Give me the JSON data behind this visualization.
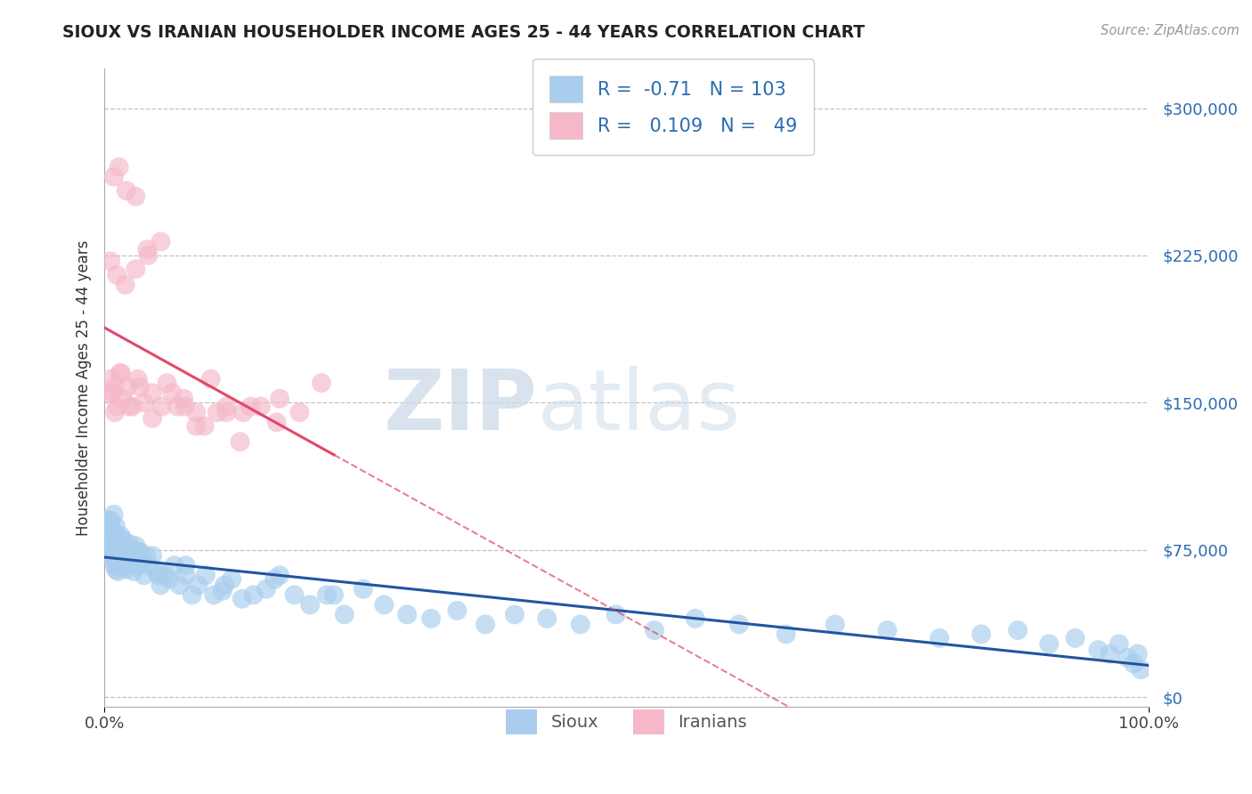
{
  "title": "SIOUX VS IRANIAN HOUSEHOLDER INCOME AGES 25 - 44 YEARS CORRELATION CHART",
  "source": "Source: ZipAtlas.com",
  "ylabel": "Householder Income Ages 25 - 44 years",
  "xlim": [
    0.0,
    1.0
  ],
  "ylim": [
    -5000,
    320000
  ],
  "yticks": [
    0,
    75000,
    150000,
    225000,
    300000
  ],
  "ytick_labels": [
    "$0",
    "$75,000",
    "$150,000",
    "$225,000",
    "$300,000"
  ],
  "xtick_labels": [
    "0.0%",
    "100.0%"
  ],
  "sioux_dot_color": "#A8CDED",
  "iranian_dot_color": "#F5B8C8",
  "sioux_line_color": "#2255A0",
  "iranian_line_color": "#E04868",
  "sioux_R": -0.71,
  "sioux_N": 103,
  "iranian_R": 0.109,
  "iranian_N": 49,
  "legend_label_sioux": "Sioux",
  "legend_label_iranian": "Iranians",
  "watermark_zip": "ZIP",
  "watermark_atlas": "atlas",
  "background_color": "#FFFFFF",
  "grid_color": "#BBBBBB",
  "title_color": "#222222",
  "source_color": "#999999",
  "axis_label_color": "#333333",
  "tick_value_color": "#2B6CB0",
  "bottom_legend_color": "#555555",
  "sioux_x": [
    0.002,
    0.003,
    0.004,
    0.005,
    0.006,
    0.006,
    0.007,
    0.007,
    0.008,
    0.008,
    0.009,
    0.009,
    0.01,
    0.01,
    0.011,
    0.011,
    0.012,
    0.012,
    0.013,
    0.013,
    0.014,
    0.015,
    0.015,
    0.016,
    0.016,
    0.017,
    0.018,
    0.019,
    0.02,
    0.021,
    0.022,
    0.023,
    0.024,
    0.025,
    0.027,
    0.028,
    0.03,
    0.032,
    0.034,
    0.036,
    0.038,
    0.04,
    0.043,
    0.046,
    0.05,
    0.054,
    0.058,
    0.062,
    0.067,
    0.072,
    0.078,
    0.084,
    0.09,
    0.097,
    0.105,
    0.113,
    0.122,
    0.132,
    0.143,
    0.155,
    0.168,
    0.182,
    0.197,
    0.213,
    0.23,
    0.248,
    0.268,
    0.29,
    0.313,
    0.338,
    0.365,
    0.393,
    0.424,
    0.456,
    0.49,
    0.527,
    0.566,
    0.608,
    0.653,
    0.7,
    0.75,
    0.8,
    0.84,
    0.875,
    0.905,
    0.93,
    0.952,
    0.963,
    0.972,
    0.98,
    0.986,
    0.99,
    0.993,
    0.004,
    0.008,
    0.013,
    0.021,
    0.033,
    0.052,
    0.078,
    0.115,
    0.163,
    0.22
  ],
  "sioux_y": [
    88000,
    82000,
    90000,
    80000,
    76000,
    90000,
    84000,
    72000,
    85000,
    70000,
    93000,
    75000,
    67000,
    79000,
    87000,
    65000,
    73000,
    82000,
    71000,
    76000,
    69000,
    74000,
    78000,
    82000,
    67000,
    72000,
    80000,
    70000,
    76000,
    65000,
    74000,
    67000,
    78000,
    72000,
    70000,
    64000,
    77000,
    67000,
    74000,
    70000,
    62000,
    72000,
    67000,
    72000,
    64000,
    57000,
    62000,
    60000,
    67000,
    57000,
    62000,
    52000,
    57000,
    62000,
    52000,
    54000,
    60000,
    50000,
    52000,
    55000,
    62000,
    52000,
    47000,
    52000,
    42000,
    55000,
    47000,
    42000,
    40000,
    44000,
    37000,
    42000,
    40000,
    37000,
    42000,
    34000,
    40000,
    37000,
    32000,
    37000,
    34000,
    30000,
    32000,
    34000,
    27000,
    30000,
    24000,
    22000,
    27000,
    20000,
    17000,
    22000,
    14000,
    90000,
    77000,
    64000,
    70000,
    74000,
    62000,
    67000,
    57000,
    60000,
    52000
  ],
  "iranian_x": [
    0.004,
    0.006,
    0.008,
    0.01,
    0.012,
    0.015,
    0.018,
    0.022,
    0.027,
    0.032,
    0.038,
    0.046,
    0.055,
    0.065,
    0.076,
    0.088,
    0.102,
    0.117,
    0.133,
    0.15,
    0.168,
    0.187,
    0.208,
    0.01,
    0.016,
    0.024,
    0.034,
    0.046,
    0.06,
    0.077,
    0.096,
    0.117,
    0.14,
    0.165,
    0.009,
    0.014,
    0.021,
    0.03,
    0.041,
    0.054,
    0.07,
    0.088,
    0.108,
    0.13,
    0.006,
    0.012,
    0.02,
    0.03,
    0.042
  ],
  "iranian_y": [
    155000,
    162000,
    155000,
    158000,
    148000,
    165000,
    152000,
    158000,
    148000,
    162000,
    150000,
    155000,
    148000,
    155000,
    152000,
    145000,
    162000,
    148000,
    145000,
    148000,
    152000,
    145000,
    160000,
    145000,
    165000,
    148000,
    158000,
    142000,
    160000,
    148000,
    138000,
    145000,
    148000,
    140000,
    265000,
    270000,
    258000,
    255000,
    228000,
    232000,
    148000,
    138000,
    145000,
    130000,
    222000,
    215000,
    210000,
    218000,
    225000
  ]
}
